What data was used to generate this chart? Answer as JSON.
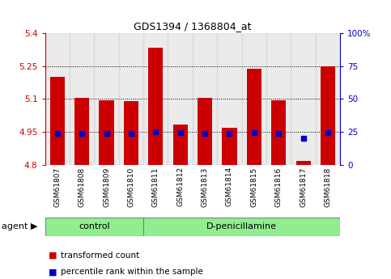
{
  "title": "GDS1394 / 1368804_at",
  "samples": [
    "GSM61807",
    "GSM61808",
    "GSM61809",
    "GSM61810",
    "GSM61811",
    "GSM61812",
    "GSM61813",
    "GSM61814",
    "GSM61815",
    "GSM61816",
    "GSM61817",
    "GSM61818"
  ],
  "transformed_count": [
    5.2,
    5.105,
    5.093,
    5.09,
    5.335,
    4.985,
    5.106,
    4.968,
    5.24,
    5.093,
    4.815,
    5.25
  ],
  "percentile_rank": [
    24.0,
    23.5,
    23.5,
    23.5,
    25.0,
    24.5,
    23.5,
    23.5,
    24.5,
    23.5,
    20.0,
    24.5
  ],
  "bar_bottom": 4.8,
  "ylim_left": [
    4.8,
    5.4
  ],
  "ylim_right": [
    0,
    100
  ],
  "yticks_left": [
    4.8,
    4.95,
    5.1,
    5.25,
    5.4
  ],
  "yticks_right": [
    0,
    25,
    50,
    75,
    100
  ],
  "ytick_labels_left": [
    "4.8",
    "4.95",
    "5.1",
    "5.25",
    "5.4"
  ],
  "ytick_labels_right": [
    "0",
    "25",
    "50",
    "75",
    "100%"
  ],
  "hlines": [
    4.95,
    5.1,
    5.25
  ],
  "control_indices": [
    0,
    1,
    2,
    3
  ],
  "dpen_indices": [
    4,
    5,
    6,
    7,
    8,
    9,
    10,
    11
  ],
  "control_label": "control",
  "dpen_label": "D-penicillamine",
  "agent_label": "agent",
  "legend_red_label": "transformed count",
  "legend_blue_label": "percentile rank within the sample",
  "bar_color": "#cc0000",
  "blue_color": "#0000cc",
  "col_bg_color": "#d3d3d3",
  "group_color": "#90ee90",
  "bar_width": 0.6,
  "blue_marker_size": 5
}
